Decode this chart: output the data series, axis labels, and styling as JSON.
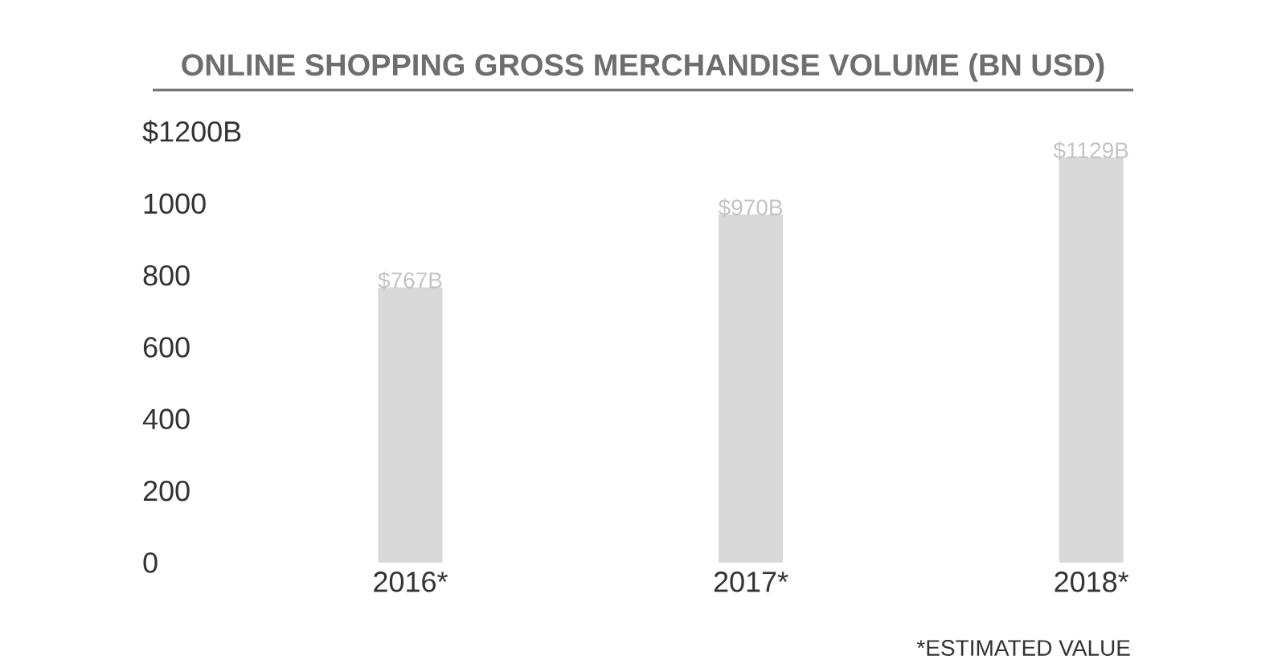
{
  "chart_data": {
    "type": "bar",
    "title": "ONLINE SHOPPING GROSS MERCHANDISE VOLUME (BN USD)",
    "categories": [
      "2016*",
      "2017*",
      "2018*"
    ],
    "values": [
      767,
      970,
      1129
    ],
    "value_labels": [
      "$767B",
      "$970B",
      "$1129B"
    ],
    "color": "#d9d9d9",
    "ylim": [
      0,
      1200
    ],
    "yticks": [
      0,
      200,
      400,
      600,
      800,
      1000,
      {
        "value": 1200,
        "label": "$1200B"
      }
    ],
    "grid": false,
    "annotations": [
      "*ESTIMATED VALUE"
    ]
  }
}
